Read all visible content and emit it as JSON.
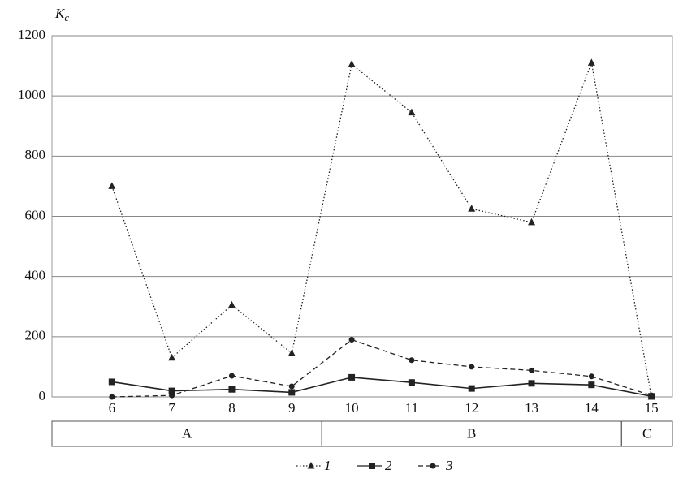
{
  "chart_data": {
    "type": "line",
    "ylabel": {
      "main": "K",
      "sub": "c"
    },
    "x": [
      6,
      7,
      8,
      9,
      10,
      11,
      12,
      13,
      14,
      15
    ],
    "xlim": [
      5,
      15.35
    ],
    "xticks": [
      6,
      7,
      8,
      9,
      10,
      11,
      12,
      13,
      14,
      15
    ],
    "ylim": [
      0,
      1200
    ],
    "yticks": [
      0,
      200,
      400,
      600,
      800,
      1000,
      1200
    ],
    "grid": true,
    "legend": "bottom",
    "groups": [
      {
        "label": "A",
        "first": 6,
        "last": 9
      },
      {
        "label": "B",
        "first": 10,
        "last": 14
      },
      {
        "label": "C",
        "first": 15,
        "last": 15
      }
    ],
    "series": [
      {
        "name": "1",
        "color": "#222222",
        "dash": "dotted",
        "marker": "triangle",
        "values": [
          700,
          130,
          305,
          145,
          1105,
          945,
          625,
          580,
          1110,
          0
        ]
      },
      {
        "name": "2",
        "color": "#222222",
        "dash": "solid",
        "marker": "square",
        "values": [
          50,
          20,
          25,
          15,
          65,
          48,
          28,
          45,
          40,
          2
        ]
      },
      {
        "name": "3",
        "color": "#222222",
        "dash": "dashed",
        "marker": "circle",
        "values": [
          0,
          5,
          70,
          35,
          190,
          122,
          100,
          88,
          68,
          5
        ]
      }
    ]
  }
}
